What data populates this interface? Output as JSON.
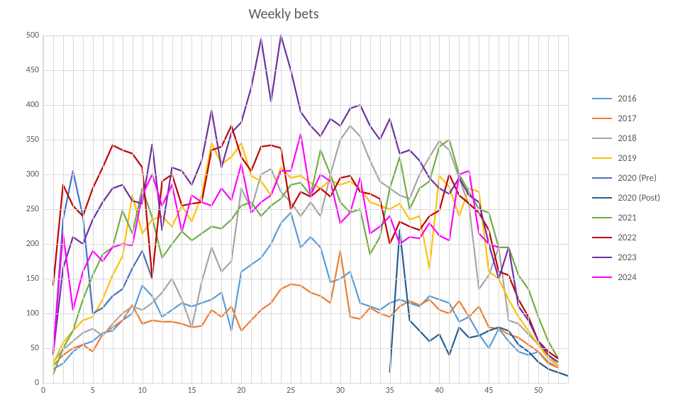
{
  "chart": {
    "type": "line",
    "title": "Weekly bets",
    "title_fontsize": 20,
    "title_color": "#595959",
    "background_color": "#ffffff",
    "plot_background": "#ffffff",
    "grid_color": "#d9d9d9",
    "axis_label_color": "#595959",
    "axis_label_fontsize": 12,
    "legend_fontsize": 13,
    "line_width": 2.2,
    "xlim": [
      0,
      53
    ],
    "ylim": [
      0,
      500
    ],
    "x_ticks": [
      0,
      5,
      10,
      15,
      20,
      25,
      30,
      35,
      40,
      45,
      50
    ],
    "y_ticks": [
      0,
      50,
      100,
      150,
      200,
      250,
      300,
      350,
      400,
      450,
      500
    ],
    "x_minor_grid": true,
    "series": [
      {
        "name": "2016",
        "color": "#5b9bd5",
        "x": [
          1,
          2,
          3,
          4,
          5,
          6,
          7,
          8,
          9,
          10,
          11,
          12,
          13,
          14,
          15,
          16,
          17,
          18,
          19,
          20,
          21,
          22,
          23,
          24,
          25,
          26,
          27,
          28,
          29,
          30,
          31,
          32,
          33,
          34,
          35,
          36,
          37,
          38,
          39,
          40,
          41,
          42,
          43,
          44,
          45,
          46,
          47,
          48,
          49,
          50,
          51,
          52
        ],
        "y": [
          20,
          28,
          45,
          55,
          60,
          72,
          75,
          90,
          100,
          140,
          125,
          95,
          105,
          115,
          110,
          115,
          120,
          130,
          75,
          160,
          170,
          180,
          200,
          230,
          245,
          195,
          210,
          195,
          145,
          150,
          160,
          115,
          110,
          105,
          115,
          120,
          115,
          110,
          125,
          120,
          115,
          88,
          95,
          70,
          50,
          78,
          60,
          45,
          40,
          45,
          30,
          22
        ]
      },
      {
        "name": "2017",
        "color": "#ed7d31",
        "x": [
          1,
          2,
          3,
          4,
          5,
          6,
          7,
          8,
          9,
          10,
          11,
          12,
          13,
          14,
          15,
          16,
          17,
          18,
          19,
          20,
          21,
          22,
          23,
          24,
          25,
          26,
          27,
          28,
          29,
          30,
          31,
          32,
          33,
          34,
          35,
          36,
          37,
          38,
          39,
          40,
          41,
          42,
          43,
          44,
          45,
          46,
          47,
          48,
          49,
          50,
          51,
          52
        ],
        "y": [
          25,
          40,
          50,
          55,
          45,
          70,
          80,
          90,
          112,
          85,
          90,
          88,
          88,
          85,
          80,
          82,
          105,
          95,
          110,
          75,
          90,
          105,
          115,
          135,
          142,
          140,
          130,
          125,
          115,
          190,
          95,
          92,
          108,
          100,
          95,
          110,
          118,
          112,
          120,
          105,
          100,
          118,
          95,
          110,
          80,
          78,
          70,
          65,
          55,
          45,
          28,
          22
        ]
      },
      {
        "name": "2018",
        "color": "#a5a5a5",
        "x": [
          1,
          2,
          3,
          4,
          5,
          6,
          7,
          8,
          9,
          10,
          11,
          12,
          13,
          14,
          15,
          16,
          17,
          18,
          19,
          20,
          21,
          22,
          23,
          24,
          25,
          26,
          27,
          28,
          29,
          30,
          31,
          32,
          33,
          34,
          35,
          36,
          37,
          38,
          39,
          40,
          41,
          42,
          43,
          44,
          45,
          46,
          47,
          48,
          49,
          50,
          51,
          52
        ],
        "y": [
          30,
          48,
          60,
          72,
          78,
          68,
          85,
          100,
          110,
          105,
          115,
          130,
          150,
          120,
          80,
          145,
          195,
          160,
          175,
          280,
          250,
          300,
          308,
          275,
          260,
          240,
          260,
          240,
          300,
          350,
          370,
          355,
          320,
          290,
          280,
          270,
          265,
          300,
          325,
          348,
          335,
          295,
          255,
          135,
          155,
          195,
          90,
          85,
          70,
          55,
          40,
          25
        ]
      },
      {
        "name": "2019",
        "color": "#ffc000",
        "x": [
          1,
          2,
          3,
          4,
          5,
          6,
          7,
          8,
          9,
          10,
          11,
          12,
          13,
          14,
          15,
          16,
          17,
          18,
          19,
          20,
          21,
          22,
          23,
          24,
          25,
          26,
          27,
          28,
          29,
          30,
          31,
          32,
          33,
          34,
          35,
          36,
          37,
          38,
          39,
          40,
          41,
          42,
          43,
          44,
          45,
          46,
          47,
          48,
          49,
          50,
          51,
          52
        ],
        "y": [
          28,
          58,
          75,
          90,
          95,
          120,
          155,
          182,
          270,
          215,
          235,
          240,
          225,
          255,
          232,
          270,
          345,
          315,
          325,
          345,
          298,
          290,
          270,
          310,
          295,
          298,
          288,
          280,
          292,
          285,
          290,
          280,
          260,
          255,
          250,
          258,
          235,
          240,
          165,
          298,
          282,
          240,
          280,
          275,
          160,
          150,
          120,
          95,
          75,
          55,
          35,
          25
        ]
      },
      {
        "name": "2020 (Pre)",
        "color": "#4472c4",
        "x": [
          1,
          2,
          3,
          4,
          5,
          6,
          7,
          8,
          9,
          10,
          11
        ],
        "y": [
          40,
          235,
          305,
          240,
          100,
          108,
          125,
          135,
          165,
          190,
          150
        ]
      },
      {
        "name": "2020 (Post)",
        "color": "#255e91",
        "x": [
          35,
          36,
          37,
          38,
          39,
          40,
          41,
          42,
          43,
          44,
          45,
          46,
          47,
          48,
          49,
          50,
          51,
          52,
          53
        ],
        "y": [
          15,
          220,
          90,
          75,
          60,
          70,
          40,
          80,
          65,
          68,
          75,
          80,
          75,
          55,
          45,
          30,
          20,
          15,
          10
        ]
      },
      {
        "name": "2021",
        "color": "#70ad47",
        "x": [
          1,
          2,
          3,
          4,
          5,
          6,
          7,
          8,
          9,
          10,
          11,
          12,
          13,
          14,
          15,
          16,
          17,
          18,
          19,
          20,
          21,
          22,
          23,
          24,
          25,
          26,
          27,
          28,
          29,
          30,
          31,
          32,
          33,
          34,
          35,
          36,
          37,
          38,
          39,
          40,
          41,
          42,
          43,
          44,
          45,
          46,
          47,
          48,
          49,
          50,
          51,
          52
        ],
        "y": [
          12,
          50,
          75,
          120,
          155,
          185,
          195,
          248,
          215,
          280,
          238,
          180,
          200,
          218,
          205,
          215,
          225,
          222,
          235,
          255,
          260,
          240,
          255,
          265,
          285,
          288,
          270,
          335,
          300,
          260,
          245,
          250,
          185,
          210,
          280,
          325,
          250,
          280,
          290,
          340,
          350,
          300,
          275,
          250,
          245,
          195,
          195,
          155,
          135,
          95,
          60,
          35
        ]
      },
      {
        "name": "2022",
        "color": "#c00000",
        "x": [
          1,
          2,
          3,
          4,
          5,
          6,
          7,
          8,
          9,
          10,
          11,
          12,
          13,
          14,
          15,
          16,
          17,
          18,
          19,
          20,
          21,
          22,
          23,
          24,
          25,
          26,
          27,
          28,
          29,
          30,
          31,
          32,
          33,
          34,
          35,
          36,
          37,
          38,
          39,
          40,
          41,
          42,
          43,
          44,
          45,
          46,
          47,
          48,
          49,
          50,
          51,
          52
        ],
        "y": [
          140,
          285,
          255,
          240,
          280,
          310,
          342,
          335,
          330,
          310,
          152,
          290,
          300,
          255,
          258,
          260,
          335,
          340,
          370,
          325,
          305,
          340,
          342,
          338,
          250,
          275,
          268,
          280,
          268,
          295,
          298,
          275,
          272,
          265,
          200,
          232,
          225,
          220,
          240,
          248,
          300,
          270,
          258,
          245,
          220,
          160,
          155,
          120,
          95,
          60,
          45,
          35
        ]
      },
      {
        "name": "2023",
        "color": "#7030a0",
        "x": [
          1,
          2,
          3,
          4,
          5,
          6,
          7,
          8,
          9,
          10,
          11,
          12,
          13,
          14,
          15,
          16,
          17,
          18,
          19,
          20,
          21,
          22,
          23,
          24,
          25,
          26,
          27,
          28,
          29,
          30,
          31,
          32,
          33,
          34,
          35,
          36,
          37,
          38,
          39,
          40,
          41,
          42,
          43,
          44,
          45,
          46,
          47,
          48,
          49,
          50,
          51,
          52
        ],
        "y": [
          42,
          165,
          210,
          200,
          235,
          260,
          280,
          285,
          262,
          258,
          343,
          220,
          310,
          305,
          285,
          320,
          392,
          310,
          360,
          375,
          425,
          495,
          405,
          500,
          450,
          390,
          370,
          355,
          380,
          370,
          395,
          400,
          370,
          350,
          380,
          330,
          335,
          320,
          295,
          280,
          272,
          295,
          270,
          260,
          200,
          150,
          195,
          110,
          90,
          60,
          40,
          30
        ]
      },
      {
        "name": "2024",
        "color": "#ff00ff",
        "x": [
          1,
          2,
          3,
          4,
          5,
          6,
          7,
          8,
          9,
          10,
          11,
          12,
          13,
          14,
          15,
          16,
          17,
          18,
          19,
          20,
          21,
          22,
          23,
          24,
          25,
          26,
          27,
          28,
          29,
          30,
          31,
          32,
          33,
          34,
          35,
          36,
          37,
          38,
          39,
          40,
          41,
          42,
          43,
          44,
          45,
          46
        ],
        "y": [
          45,
          215,
          105,
          160,
          190,
          175,
          195,
          200,
          198,
          270,
          300,
          255,
          285,
          218,
          270,
          260,
          255,
          280,
          263,
          315,
          245,
          260,
          270,
          305,
          305,
          358,
          270,
          300,
          290,
          230,
          245,
          295,
          215,
          225,
          240,
          200,
          210,
          208,
          230,
          212,
          205,
          300,
          305,
          215,
          200,
          195
        ]
      }
    ]
  }
}
